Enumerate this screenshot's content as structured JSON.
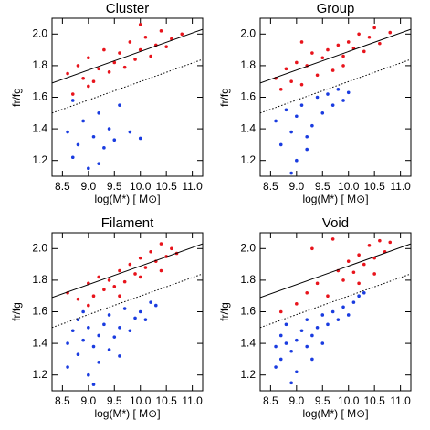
{
  "chart_data": [
    {
      "type": "scatter",
      "title": "Cluster",
      "xlabel": "log(M*) [ M⊙]",
      "ylabel": "fr/fg",
      "xlim": [
        8.3,
        11.2
      ],
      "ylim": [
        1.1,
        2.1
      ],
      "xticks": [
        8.5,
        {
          "value": 9,
          "label": "9.0"
        },
        9.5,
        {
          "value": 10,
          "label": "10.0"
        },
        10.5,
        {
          "value": 11,
          "label": "11.0"
        }
      ],
      "yticks": [
        1.2,
        1.4,
        1.6,
        1.8,
        {
          "value": 2,
          "label": "2.0"
        }
      ],
      "series": [
        {
          "color": "#e8141c",
          "x": [
            8.6,
            8.7,
            8.8,
            8.9,
            9.0,
            9.1,
            9.2,
            9.3,
            9.4,
            9.5,
            9.6,
            9.7,
            9.8,
            9.9,
            10.0,
            10.1,
            10.2,
            10.3,
            10.4,
            10.5,
            10.6,
            10.8,
            9.0,
            10.0
          ],
          "values": [
            1.75,
            1.62,
            1.8,
            1.72,
            1.85,
            1.7,
            1.78,
            1.9,
            1.76,
            1.82,
            1.88,
            1.79,
            1.95,
            1.84,
            1.9,
            1.98,
            1.86,
            1.93,
            2.02,
            1.92,
            1.97,
            2.0,
            1.67,
            2.06
          ]
        },
        {
          "color": "#1a3ce0",
          "x": [
            8.6,
            8.7,
            8.8,
            8.9,
            9.0,
            9.1,
            9.2,
            9.3,
            9.4,
            9.5,
            9.6,
            9.8,
            10.0,
            8.7,
            9.2
          ],
          "values": [
            1.38,
            1.22,
            1.3,
            1.45,
            1.15,
            1.35,
            1.5,
            1.28,
            1.4,
            1.33,
            1.55,
            1.38,
            1.34,
            1.58,
            1.18
          ]
        }
      ],
      "lines": [
        {
          "style": "solid",
          "x": [
            8.3,
            11.2
          ],
          "values": [
            1.69,
            2.03
          ]
        },
        {
          "style": "dotted",
          "x": [
            8.3,
            11.2
          ],
          "values": [
            1.5,
            1.84
          ]
        }
      ]
    },
    {
      "type": "scatter",
      "title": "Group",
      "xlabel": "log(M*) [ M⊙]",
      "ylabel": "fr/fg",
      "xlim": [
        8.3,
        11.2
      ],
      "ylim": [
        1.1,
        2.1
      ],
      "xticks": [
        8.5,
        {
          "value": 9,
          "label": "9.0"
        },
        9.5,
        {
          "value": 10,
          "label": "10.0"
        },
        10.5,
        {
          "value": 11,
          "label": "11.0"
        }
      ],
      "yticks": [
        1.2,
        1.4,
        1.6,
        1.8,
        {
          "value": 2,
          "label": "2.0"
        }
      ],
      "series": [
        {
          "color": "#e8141c",
          "x": [
            8.6,
            8.7,
            8.8,
            8.9,
            9.0,
            9.1,
            9.2,
            9.3,
            9.4,
            9.5,
            9.6,
            9.7,
            9.8,
            9.9,
            10.0,
            10.1,
            10.2,
            10.3,
            10.4,
            10.5,
            10.6,
            10.8,
            9.1,
            9.9
          ],
          "values": [
            1.72,
            1.65,
            1.78,
            1.7,
            1.82,
            1.68,
            1.8,
            1.88,
            1.74,
            1.85,
            1.9,
            1.77,
            1.93,
            1.86,
            1.95,
            1.91,
            2.0,
            1.89,
            1.98,
            2.04,
            1.94,
            2.01,
            1.95,
            1.8
          ]
        },
        {
          "color": "#1a3ce0",
          "x": [
            8.6,
            8.7,
            8.8,
            8.9,
            9.0,
            9.0,
            9.1,
            9.2,
            9.3,
            9.4,
            9.5,
            9.6,
            9.7,
            9.8,
            9.9,
            10.0,
            8.9,
            9.2
          ],
          "values": [
            1.45,
            1.3,
            1.52,
            1.38,
            1.2,
            1.48,
            1.55,
            1.35,
            1.42,
            1.6,
            1.5,
            1.62,
            1.55,
            1.65,
            1.58,
            1.63,
            1.12,
            1.27
          ]
        }
      ],
      "lines": [
        {
          "style": "solid",
          "x": [
            8.3,
            11.2
          ],
          "values": [
            1.69,
            2.03
          ]
        },
        {
          "style": "dotted",
          "x": [
            8.3,
            11.2
          ],
          "values": [
            1.5,
            1.84
          ]
        }
      ]
    },
    {
      "type": "scatter",
      "title": "Filament",
      "xlabel": "log(M*) [ M⊙]",
      "ylabel": "fr/fg",
      "xlim": [
        8.3,
        11.2
      ],
      "ylim": [
        1.1,
        2.1
      ],
      "xticks": [
        8.5,
        {
          "value": 9,
          "label": "9.0"
        },
        9.5,
        {
          "value": 10,
          "label": "10.0"
        },
        10.5,
        {
          "value": 11,
          "label": "11.0"
        }
      ],
      "yticks": [
        1.2,
        1.4,
        1.6,
        1.8,
        {
          "value": 2,
          "label": "2.0"
        }
      ],
      "series": [
        {
          "color": "#e8141c",
          "x": [
            8.6,
            8.8,
            9.0,
            9.1,
            9.2,
            9.3,
            9.4,
            9.5,
            9.6,
            9.7,
            9.8,
            9.9,
            10.0,
            10.1,
            10.2,
            10.3,
            10.4,
            10.5,
            10.6,
            10.7,
            9.0,
            9.6,
            10.0,
            10.4
          ],
          "values": [
            1.72,
            1.68,
            1.78,
            1.7,
            1.82,
            1.74,
            1.8,
            1.76,
            1.86,
            1.79,
            1.9,
            1.84,
            1.94,
            1.88,
            1.98,
            1.92,
            2.03,
            1.95,
            2.0,
            1.97,
            1.64,
            1.7,
            1.82,
            1.86
          ]
        },
        {
          "color": "#1a3ce0",
          "x": [
            8.6,
            8.6,
            8.7,
            8.8,
            8.8,
            8.9,
            9.0,
            9.0,
            9.1,
            9.2,
            9.2,
            9.3,
            9.4,
            9.4,
            9.5,
            9.6,
            9.6,
            9.7,
            9.8,
            9.9,
            10.0,
            10.1,
            10.2,
            10.3,
            9.1,
            8.9
          ],
          "values": [
            1.4,
            1.25,
            1.48,
            1.33,
            1.55,
            1.42,
            1.2,
            1.5,
            1.38,
            1.45,
            1.28,
            1.52,
            1.36,
            1.58,
            1.44,
            1.5,
            1.32,
            1.62,
            1.48,
            1.56,
            1.6,
            1.55,
            1.66,
            1.64,
            1.14,
            1.6
          ]
        }
      ],
      "lines": [
        {
          "style": "solid",
          "x": [
            8.3,
            11.2
          ],
          "values": [
            1.69,
            2.03
          ]
        },
        {
          "style": "dotted",
          "x": [
            8.3,
            11.2
          ],
          "values": [
            1.5,
            1.84
          ]
        }
      ]
    },
    {
      "type": "scatter",
      "title": "Void",
      "xlabel": "log(M*) [ M⊙]",
      "ylabel": "fr/fg",
      "xlim": [
        8.3,
        11.2
      ],
      "ylim": [
        1.1,
        2.1
      ],
      "xticks": [
        8.5,
        {
          "value": 9,
          "label": "9.0"
        },
        9.5,
        {
          "value": 10,
          "label": "10.0"
        },
        10.5,
        {
          "value": 11,
          "label": "11.0"
        }
      ],
      "yticks": [
        1.2,
        1.4,
        1.6,
        1.8,
        {
          "value": 2,
          "label": "2.0"
        }
      ],
      "series": [
        {
          "color": "#e8141c",
          "x": [
            8.7,
            9.0,
            9.2,
            9.4,
            9.6,
            9.8,
            9.9,
            10.0,
            10.1,
            10.2,
            10.3,
            10.4,
            10.5,
            10.6,
            10.7,
            9.3,
            9.7,
            10.2,
            10.5,
            10.8
          ],
          "values": [
            1.6,
            1.65,
            1.72,
            1.78,
            1.7,
            1.86,
            1.8,
            1.92,
            1.85,
            1.96,
            1.9,
            2.02,
            1.94,
            2.05,
            1.98,
            2.0,
            2.06,
            1.78,
            1.84,
            2.04
          ]
        },
        {
          "color": "#1a3ce0",
          "x": [
            8.6,
            8.6,
            8.7,
            8.7,
            8.8,
            8.8,
            8.9,
            9.0,
            9.0,
            9.1,
            9.2,
            9.2,
            9.3,
            9.4,
            9.5,
            9.5,
            9.6,
            9.7,
            9.8,
            9.9,
            10.0,
            10.1,
            10.2,
            10.3,
            8.9,
            9.3
          ],
          "values": [
            1.38,
            1.25,
            1.45,
            1.3,
            1.4,
            1.52,
            1.35,
            1.42,
            1.22,
            1.48,
            1.38,
            1.55,
            1.45,
            1.5,
            1.4,
            1.58,
            1.52,
            1.6,
            1.55,
            1.63,
            1.58,
            1.66,
            1.7,
            1.72,
            1.15,
            1.3
          ]
        }
      ],
      "lines": [
        {
          "style": "solid",
          "x": [
            8.3,
            11.2
          ],
          "values": [
            1.69,
            2.03
          ]
        },
        {
          "style": "dotted",
          "x": [
            8.3,
            11.2
          ],
          "values": [
            1.5,
            1.84
          ]
        }
      ]
    }
  ]
}
